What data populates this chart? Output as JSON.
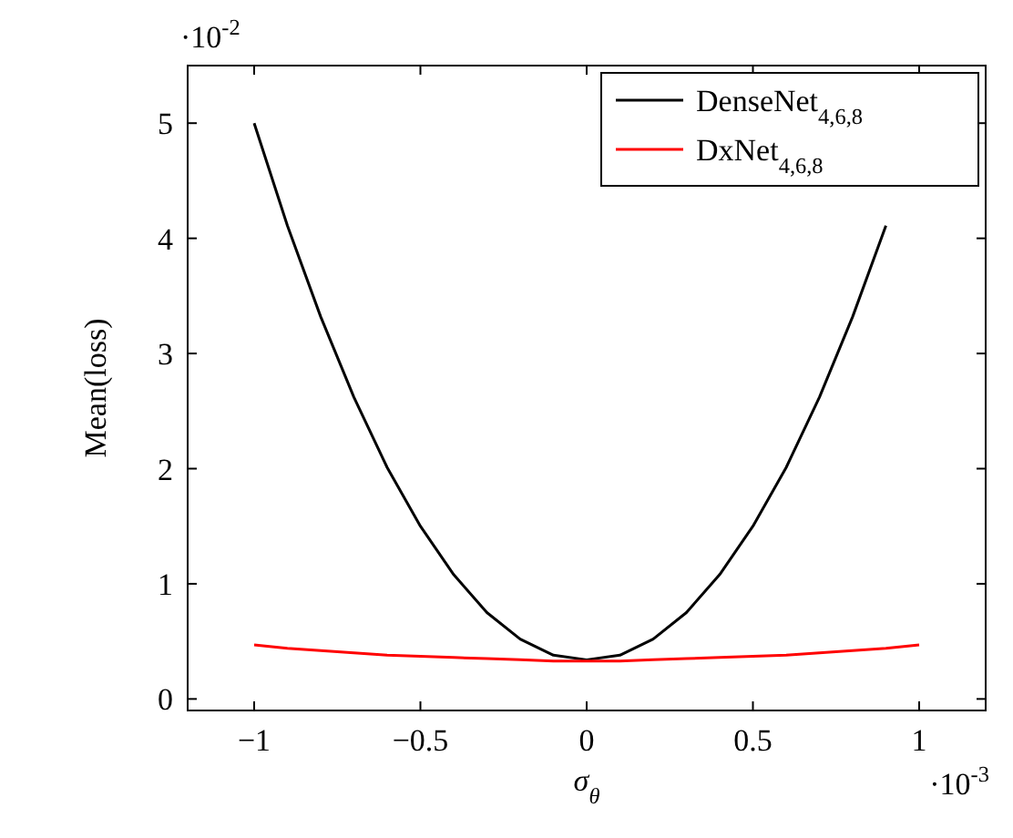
{
  "chart_data": {
    "type": "line",
    "xlabel": "σ$_{θ}$",
    "ylabel": "Mean(loss)",
    "xlim": [
      -1.2,
      1.2
    ],
    "ylim": [
      -0.1,
      5.5
    ],
    "xticks": [
      -1,
      -0.5,
      0,
      0.5,
      1
    ],
    "yticks": [
      0,
      1,
      2,
      3,
      4,
      5
    ],
    "grid": false,
    "legend": "top right",
    "marker": "none",
    "line_style": "solid",
    "x": [
      -1,
      -0.9,
      -0.8,
      -0.7,
      -0.6,
      -0.5,
      -0.4,
      -0.3,
      -0.2,
      -0.1,
      0,
      0.1,
      0.2,
      0.3,
      0.4,
      0.5,
      0.6,
      0.7,
      0.8,
      0.9,
      1
    ],
    "series": [
      {
        "name": "DenseNet$_{4,6,8}$",
        "color": "#000000",
        "values": [
          5.0,
          4.11,
          3.32,
          2.62,
          2.01,
          1.5,
          1.08,
          0.75,
          0.52,
          0.38,
          0.34,
          0.38,
          0.52,
          0.75,
          1.08,
          1.5,
          2.01,
          2.62,
          3.32,
          4.11,
          null
        ]
      },
      {
        "name": "DxNet$_{4,6,8}$",
        "color": "#ff0000",
        "values": [
          0.47,
          0.44,
          0.42,
          0.4,
          0.38,
          0.37,
          0.36,
          0.35,
          0.34,
          0.33,
          0.33,
          0.33,
          0.34,
          0.35,
          0.36,
          0.37,
          0.38,
          0.4,
          0.42,
          0.44,
          0.47
        ]
      }
    ],
    "annotations": [
      "·10$^{-2}$",
      "·10$^{-3}$"
    ]
  }
}
